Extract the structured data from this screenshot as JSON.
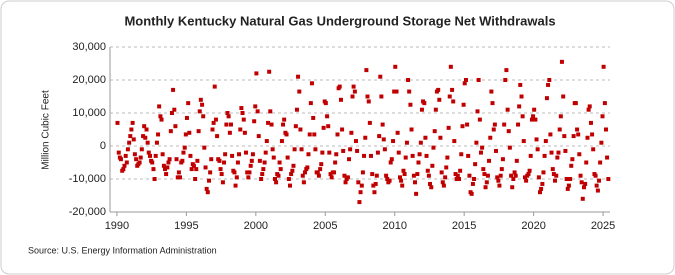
{
  "chart_data": {
    "type": "scatter",
    "title": "Monthly Kentucky Natural Gas Underground Storage Net Withdrawals",
    "y_label": "Million Cubic Feet",
    "source": "Source: U.S. Energy Information Administration",
    "color": "#c00000",
    "grid": true,
    "xlim": [
      1989.5,
      2025.5
    ],
    "xticks": [
      1990,
      1995,
      2000,
      2005,
      2010,
      2015,
      2020,
      2025
    ],
    "ylim": [
      -20000,
      30000
    ],
    "yticks": [
      {
        "value": -20000,
        "label": "-20,000"
      },
      {
        "value": -10000,
        "label": "-10,000"
      },
      0,
      {
        "value": 10000,
        "label": "10,000"
      },
      {
        "value": 20000,
        "label": "20,000"
      },
      {
        "value": 30000,
        "label": "30,000"
      }
    ],
    "x": [
      1990.04,
      1990.13,
      1990.21,
      1990.29,
      1990.38,
      1990.46,
      1990.54,
      1990.63,
      1990.71,
      1990.79,
      1990.88,
      1990.96,
      1991.04,
      1991.13,
      1991.21,
      1991.29,
      1991.38,
      1991.46,
      1991.54,
      1991.63,
      1991.71,
      1991.79,
      1991.88,
      1991.96,
      1992.04,
      1992.13,
      1992.21,
      1992.29,
      1992.38,
      1992.46,
      1992.54,
      1992.63,
      1992.71,
      1992.79,
      1992.88,
      1992.96,
      1993.04,
      1993.13,
      1993.21,
      1993.29,
      1993.38,
      1993.46,
      1993.54,
      1993.63,
      1993.71,
      1993.79,
      1993.88,
      1993.96,
      1994.04,
      1994.13,
      1994.21,
      1994.29,
      1994.38,
      1994.46,
      1994.54,
      1994.63,
      1994.71,
      1994.79,
      1994.88,
      1994.96,
      1995.04,
      1995.13,
      1995.21,
      1995.29,
      1995.38,
      1995.46,
      1995.54,
      1995.63,
      1995.71,
      1995.79,
      1995.88,
      1995.96,
      1996.04,
      1996.13,
      1996.21,
      1996.29,
      1996.38,
      1996.46,
      1996.54,
      1996.63,
      1996.71,
      1996.79,
      1996.88,
      1996.96,
      1997.04,
      1997.13,
      1997.21,
      1997.29,
      1997.38,
      1997.46,
      1997.54,
      1997.63,
      1997.71,
      1997.79,
      1997.88,
      1997.96,
      1998.04,
      1998.13,
      1998.21,
      1998.29,
      1998.38,
      1998.46,
      1998.54,
      1998.63,
      1998.71,
      1998.79,
      1998.88,
      1998.96,
      1999.04,
      1999.13,
      1999.21,
      1999.29,
      1999.38,
      1999.46,
      1999.54,
      1999.63,
      1999.71,
      1999.79,
      1999.88,
      1999.96,
      2000.04,
      2000.13,
      2000.21,
      2000.29,
      2000.38,
      2000.46,
      2000.54,
      2000.63,
      2000.71,
      2000.79,
      2000.88,
      2000.96,
      2001.04,
      2001.13,
      2001.21,
      2001.29,
      2001.38,
      2001.46,
      2001.54,
      2001.63,
      2001.71,
      2001.79,
      2001.88,
      2001.96,
      2002.04,
      2002.13,
      2002.21,
      2002.29,
      2002.38,
      2002.46,
      2002.54,
      2002.63,
      2002.71,
      2002.79,
      2002.88,
      2002.96,
      2003.04,
      2003.13,
      2003.21,
      2003.29,
      2003.38,
      2003.46,
      2003.54,
      2003.63,
      2003.71,
      2003.79,
      2003.88,
      2003.96,
      2004.04,
      2004.13,
      2004.21,
      2004.29,
      2004.38,
      2004.46,
      2004.54,
      2004.63,
      2004.71,
      2004.79,
      2004.88,
      2004.96,
      2005.04,
      2005.13,
      2005.21,
      2005.29,
      2005.38,
      2005.46,
      2005.54,
      2005.63,
      2005.71,
      2005.79,
      2005.88,
      2005.96,
      2006.04,
      2006.13,
      2006.21,
      2006.29,
      2006.38,
      2006.46,
      2006.54,
      2006.63,
      2006.71,
      2006.79,
      2006.88,
      2006.96,
      2007.04,
      2007.13,
      2007.21,
      2007.29,
      2007.38,
      2007.46,
      2007.54,
      2007.63,
      2007.71,
      2007.79,
      2007.88,
      2007.96,
      2008.04,
      2008.13,
      2008.21,
      2008.29,
      2008.38,
      2008.46,
      2008.54,
      2008.63,
      2008.71,
      2008.79,
      2008.88,
      2008.96,
      2009.04,
      2009.13,
      2009.21,
      2009.29,
      2009.38,
      2009.46,
      2009.54,
      2009.63,
      2009.71,
      2009.79,
      2009.88,
      2009.96,
      2010.04,
      2010.13,
      2010.21,
      2010.29,
      2010.38,
      2010.46,
      2010.54,
      2010.63,
      2010.71,
      2010.79,
      2010.88,
      2010.96,
      2011.04,
      2011.13,
      2011.21,
      2011.29,
      2011.38,
      2011.46,
      2011.54,
      2011.63,
      2011.71,
      2011.79,
      2011.88,
      2011.96,
      2012.04,
      2012.13,
      2012.21,
      2012.29,
      2012.38,
      2012.46,
      2012.54,
      2012.63,
      2012.71,
      2012.79,
      2012.88,
      2012.96,
      2013.04,
      2013.13,
      2013.21,
      2013.29,
      2013.38,
      2013.46,
      2013.54,
      2013.63,
      2013.71,
      2013.79,
      2013.88,
      2013.96,
      2014.04,
      2014.13,
      2014.21,
      2014.29,
      2014.38,
      2014.46,
      2014.54,
      2014.63,
      2014.71,
      2014.79,
      2014.88,
      2014.96,
      2015.04,
      2015.13,
      2015.21,
      2015.29,
      2015.38,
      2015.46,
      2015.54,
      2015.63,
      2015.71,
      2015.79,
      2015.88,
      2015.96,
      2016.04,
      2016.13,
      2016.21,
      2016.29,
      2016.38,
      2016.46,
      2016.54,
      2016.63,
      2016.71,
      2016.79,
      2016.88,
      2016.96,
      2017.04,
      2017.13,
      2017.21,
      2017.29,
      2017.38,
      2017.46,
      2017.54,
      2017.63,
      2017.71,
      2017.79,
      2017.88,
      2017.96,
      2018.04,
      2018.13,
      2018.21,
      2018.29,
      2018.38,
      2018.46,
      2018.54,
      2018.63,
      2018.71,
      2018.79,
      2018.88,
      2018.96,
      2019.04,
      2019.13,
      2019.21,
      2019.29,
      2019.38,
      2019.46,
      2019.54,
      2019.63,
      2019.71,
      2019.79,
      2019.88,
      2019.96,
      2020.04,
      2020.13,
      2020.21,
      2020.29,
      2020.38,
      2020.46,
      2020.54,
      2020.63,
      2020.71,
      2020.79,
      2020.88,
      2020.96,
      2021.04,
      2021.13,
      2021.21,
      2021.29,
      2021.38,
      2021.46,
      2021.54,
      2021.63,
      2021.71,
      2021.79,
      2021.88,
      2021.96,
      2022.04,
      2022.13,
      2022.21,
      2022.29,
      2022.38,
      2022.46,
      2022.54,
      2022.63,
      2022.71,
      2022.79,
      2022.88,
      2022.96,
      2023.04,
      2023.13,
      2023.21,
      2023.29,
      2023.38,
      2023.46,
      2023.54,
      2023.63,
      2023.71,
      2023.79,
      2023.88,
      2023.96,
      2024.04,
      2024.13,
      2024.21,
      2024.29,
      2024.38,
      2024.46,
      2024.54,
      2024.63,
      2024.71,
      2024.79,
      2024.88,
      2024.96,
      2025.04,
      2025.13,
      2025.21,
      2025.29,
      2025.38
    ],
    "values": [
      7000,
      -2000,
      -3500,
      -4000,
      -7500,
      -7000,
      -6000,
      -3000,
      -5000,
      -1000,
      1000,
      3000,
      5000,
      7000,
      2000,
      -2500,
      -4000,
      -6000,
      -5500,
      -5000,
      -3500,
      -1000,
      3000,
      6000,
      2500,
      5000,
      1000,
      -2000,
      -3000,
      -4500,
      -5000,
      -7000,
      -10000,
      -3000,
      1000,
      3500,
      12000,
      9000,
      8000,
      -2500,
      -6000,
      -7000,
      -8500,
      -6500,
      -5000,
      -4000,
      4500,
      10000,
      17000,
      11000,
      6000,
      -4000,
      -9500,
      -8000,
      -9500,
      -5000,
      -4500,
      -2000,
      -500,
      3500,
      8500,
      13000,
      4000,
      -3000,
      -7000,
      -5500,
      -6000,
      -10000,
      -7000,
      -4500,
      4500,
      10500,
      14000,
      12500,
      9000,
      -500,
      -6500,
      -13000,
      -14000,
      -10500,
      -8000,
      -4000,
      5000,
      7000,
      18000,
      8000,
      3000,
      -4000,
      -4500,
      -7000,
      -8500,
      -11000,
      -5000,
      -2500,
      6500,
      10000,
      9000,
      4000,
      6500,
      -3000,
      -7500,
      -8000,
      -12000,
      -9500,
      -5000,
      -2500,
      5000,
      11500,
      10000,
      8000,
      4000,
      -2000,
      -8000,
      -9500,
      -8000,
      -6000,
      -4500,
      -2500,
      7500,
      12000,
      22000,
      10500,
      3000,
      -4500,
      -10000,
      -8500,
      -7000,
      -5000,
      -2000,
      1500,
      7000,
      22500,
      10500,
      6500,
      -1000,
      -3500,
      -10000,
      -11000,
      -8500,
      -9000,
      -5000,
      -7000,
      1500,
      6500,
      8000,
      4000,
      3500,
      -3500,
      -10000,
      -12000,
      -8500,
      -7500,
      -6000,
      -1000,
      6000,
      11000,
      21000,
      16500,
      5000,
      -1000,
      -9000,
      -11000,
      -8000,
      -7000,
      -6500,
      -2500,
      3500,
      13000,
      19000,
      8500,
      3500,
      -1000,
      -8000,
      -8000,
      -9000,
      -7000,
      -5500,
      -2000,
      5500,
      13500,
      13000,
      9000,
      6000,
      -2000,
      -8500,
      -9500,
      -8000,
      -8000,
      -5000,
      -2500,
      3500,
      17500,
      18000,
      14000,
      5000,
      -1500,
      -9000,
      -11000,
      -10000,
      -9500,
      -4000,
      -1000,
      4000,
      15000,
      18000,
      16500,
      1500,
      -1500,
      -11000,
      -17000,
      -14000,
      -12000,
      -8000,
      -3000,
      2500,
      23000,
      15000,
      13500,
      7000,
      -3000,
      -8500,
      -12000,
      -14000,
      -11500,
      -9000,
      -2000,
      3000,
      21000,
      15000,
      6500,
      2000,
      -1000,
      -9000,
      -10000,
      -11000,
      -10500,
      -5000,
      -4000,
      1500,
      16500,
      24000,
      16500,
      4000,
      -2000,
      -9500,
      -10500,
      -12000,
      -7500,
      -8500,
      -3500,
      1000,
      20000,
      16500,
      12500,
      5000,
      -3000,
      -9000,
      -11000,
      -14500,
      -8500,
      -5000,
      -2500,
      1000,
      11000,
      13500,
      13000,
      2500,
      -3000,
      -7500,
      -9000,
      -11500,
      -12500,
      -6000,
      -500,
      4500,
      11000,
      16500,
      17000,
      14000,
      2500,
      -8000,
      -11000,
      -12000,
      -9500,
      -6500,
      -3500,
      5500,
      15000,
      24000,
      17000,
      13500,
      1500,
      -8500,
      -10000,
      -9000,
      -10000,
      -7500,
      -2500,
      6000,
      12500,
      19000,
      20000,
      6500,
      -3000,
      -9000,
      -14000,
      -14500,
      -11500,
      -10000,
      -5500,
      1000,
      10500,
      20000,
      8000,
      -2000,
      -500,
      -7000,
      -8500,
      -12500,
      -11000,
      -9000,
      -4500,
      2500,
      16500,
      13000,
      5000,
      6500,
      -1500,
      -9500,
      -10500,
      -12000,
      -9000,
      -7000,
      -4000,
      6500,
      20000,
      23000,
      11000,
      4500,
      -500,
      -9000,
      -12500,
      -10000,
      -8000,
      -9000,
      -4500,
      6500,
      12000,
      18500,
      15000,
      9000,
      1500,
      -9500,
      -10500,
      -9000,
      -8500,
      -7500,
      -3000,
      8000,
      9000,
      11000,
      8000,
      2000,
      -1000,
      -9500,
      -14000,
      -13000,
      -11500,
      -8000,
      -3000,
      1500,
      14500,
      18500,
      20000,
      3500,
      -2000,
      -7000,
      -8500,
      -10500,
      -9000,
      -3500,
      -2000,
      5000,
      9000,
      25500,
      15000,
      3000,
      -1500,
      -10000,
      -13000,
      -12000,
      -10000,
      -6000,
      -4000,
      3000,
      13000,
      13000,
      5000,
      3500,
      -2500,
      -9000,
      -11000,
      -16000,
      -12500,
      -11500,
      -5000,
      2500,
      11000,
      12000,
      7000,
      3500,
      -1000,
      -8500,
      -9000,
      -12000,
      -13500,
      -10500,
      -5000,
      1000,
      9000,
      24000,
      13000,
      5000,
      -3500,
      -10000
    ]
  }
}
